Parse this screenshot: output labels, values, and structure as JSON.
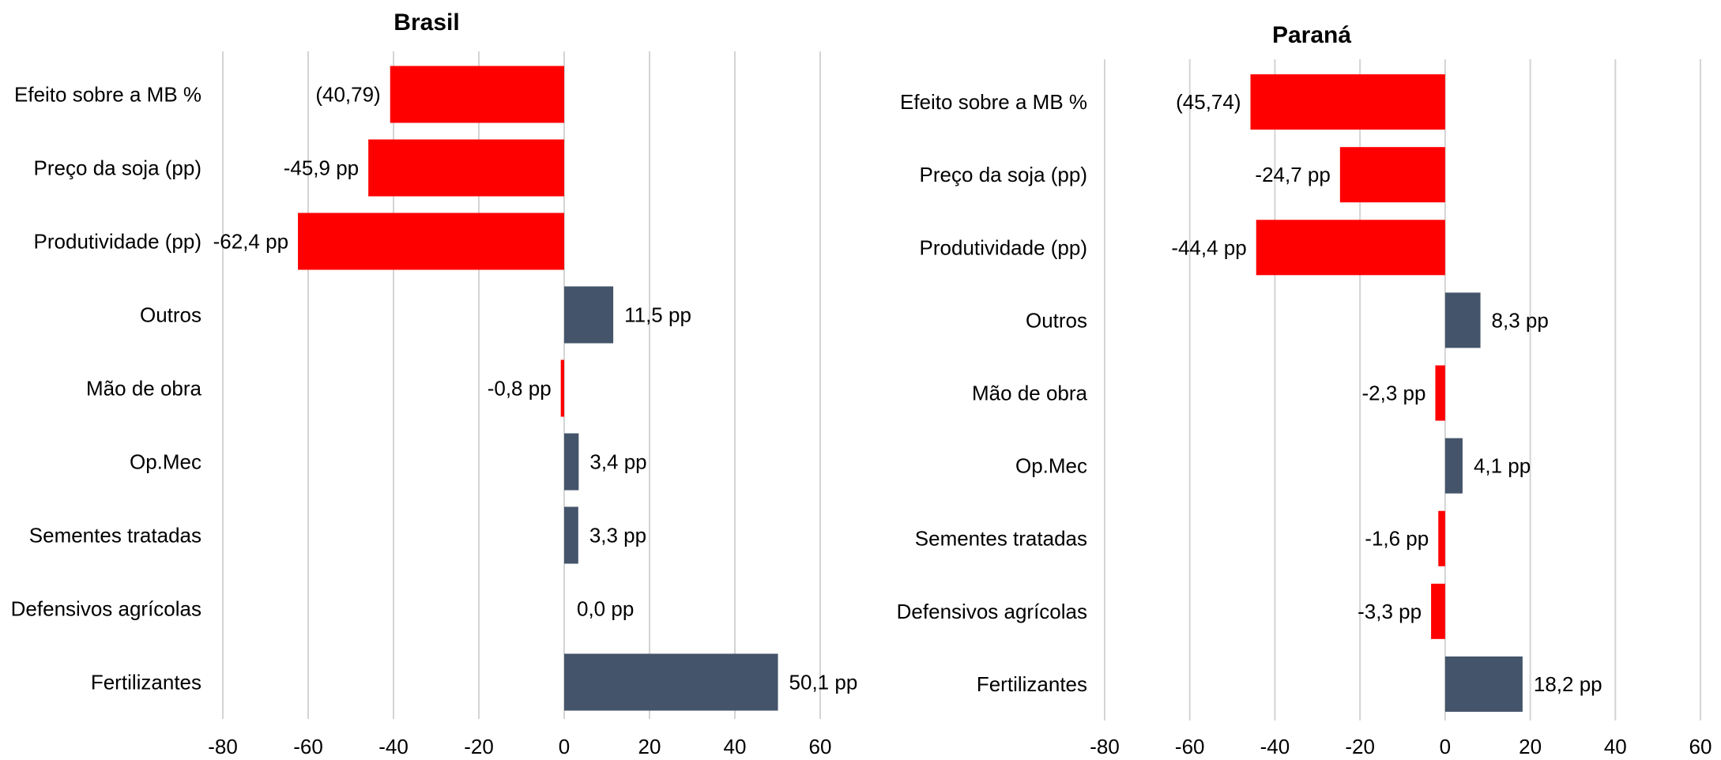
{
  "colors": {
    "negative": "#ff0000",
    "positive": "#44546a",
    "grid": "#d4d4d4"
  },
  "chart_data": [
    {
      "type": "bar",
      "orientation": "horizontal",
      "title": "Brasil",
      "categories": [
        "Efeito sobre a MB %",
        "Preço da soja (pp)",
        "Produtividade (pp)",
        "Outros",
        "Mão de obra",
        "Op.Mec",
        "Sementes tratadas",
        "Defensivos agrícolas",
        "Fertilizantes"
      ],
      "values": [
        -40.79,
        -45.9,
        -62.4,
        11.5,
        -0.8,
        3.4,
        3.3,
        0.0,
        50.1
      ],
      "data_labels": [
        "(40,79)",
        "-45,9 pp",
        "-62,4 pp",
        "11,5 pp",
        "-0,8 pp",
        "3,4 pp",
        "3,3 pp",
        "0,0 pp",
        "50,1 pp"
      ],
      "xlim": [
        -80,
        60
      ],
      "xticks": [
        -80,
        -60,
        -40,
        -20,
        0,
        20,
        40,
        60
      ],
      "tick_labels": [
        "-80",
        "-60",
        "-40",
        "-20",
        "0",
        "20",
        "40",
        "60"
      ],
      "grid": true
    },
    {
      "type": "bar",
      "orientation": "horizontal",
      "title": "Paraná",
      "categories": [
        "Efeito sobre a MB %",
        "Preço da soja (pp)",
        "Produtividade (pp)",
        "Outros",
        "Mão de obra",
        "Op.Mec",
        "Sementes tratadas",
        "Defensivos agrícolas",
        "Fertilizantes"
      ],
      "values": [
        -45.74,
        -24.7,
        -44.4,
        8.3,
        -2.3,
        4.1,
        -1.6,
        -3.3,
        18.2
      ],
      "data_labels": [
        "(45,74)",
        "-24,7 pp",
        "-44,4 pp",
        "8,3 pp",
        "-2,3 pp",
        "4,1 pp",
        "-1,6 pp",
        "-3,3 pp",
        "18,2 pp"
      ],
      "xlim": [
        -80,
        60
      ],
      "xticks": [
        -80,
        -60,
        -40,
        -20,
        0,
        20,
        40,
        60
      ],
      "tick_labels": [
        "-80",
        "-60",
        "-40",
        "-20",
        "0",
        "20",
        "40",
        "60"
      ],
      "grid": true
    }
  ]
}
